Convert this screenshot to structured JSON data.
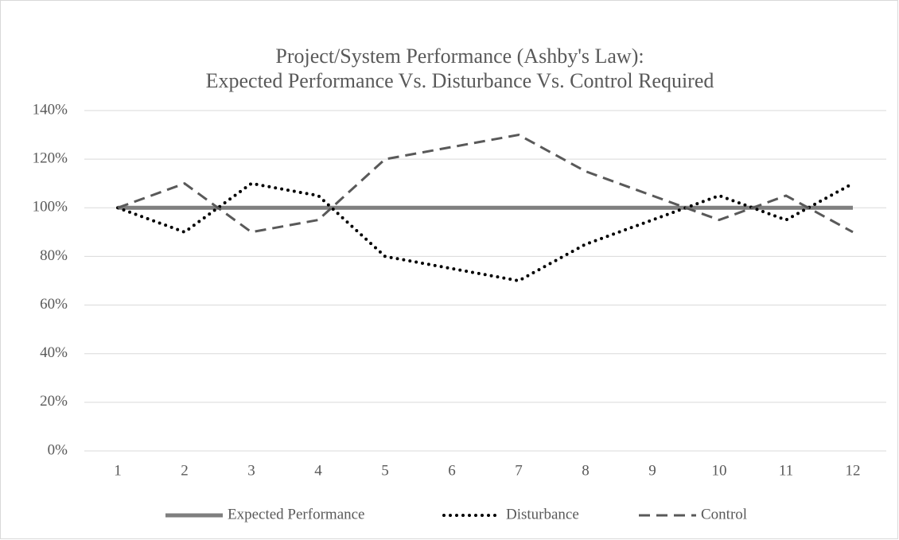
{
  "chart_data": {
    "type": "line",
    "title": [
      "Project/System Performance (Ashby's Law):",
      "Expected Performance Vs. Disturbance Vs. Control Required"
    ],
    "categories": [
      "1",
      "2",
      "3",
      "4",
      "5",
      "6",
      "7",
      "8",
      "9",
      "10",
      "11",
      "12"
    ],
    "series": [
      {
        "name": "Expected Performance",
        "color": "#7f7f7f",
        "dash": "solid",
        "values": [
          100,
          100,
          100,
          100,
          100,
          100,
          100,
          100,
          100,
          100,
          100,
          100
        ]
      },
      {
        "name": "Disturbance",
        "color": "#000000",
        "dash": "dot",
        "values": [
          100,
          90,
          110,
          105,
          80,
          75,
          70,
          85,
          95,
          105,
          95,
          110
        ]
      },
      {
        "name": "Control",
        "color": "#595959",
        "dash": "dash",
        "values": [
          100,
          110,
          90,
          95,
          120,
          125,
          130,
          115,
          105,
          95,
          105,
          90
        ]
      }
    ],
    "ylim": [
      0,
      140
    ],
    "yticks": [
      {
        "value": 0,
        "label": "0%"
      },
      {
        "value": 20,
        "label": "20%"
      },
      {
        "value": 40,
        "label": "40%"
      },
      {
        "value": 60,
        "label": "60%"
      },
      {
        "value": 80,
        "label": "80%"
      },
      {
        "value": 100,
        "label": "100%"
      },
      {
        "value": 120,
        "label": "120%"
      },
      {
        "value": 140,
        "label": "140%"
      }
    ],
    "grid": true,
    "legend": "bottom"
  }
}
